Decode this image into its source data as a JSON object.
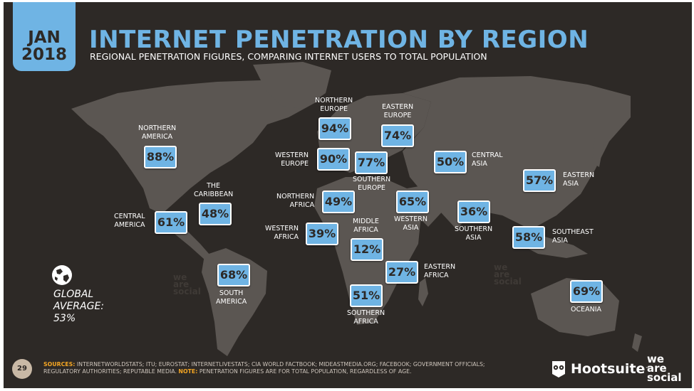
{
  "header": {
    "month": "JAN",
    "year": "2018",
    "title": "INTERNET PENETRATION BY REGION",
    "subtitle": "REGIONAL PENETRATION FIGURES, COMPARING INTERNET USERS TO TOTAL POPULATION"
  },
  "colors": {
    "background": "#2d2926",
    "accent": "#6fb4e4",
    "map": "#5b5652",
    "sources_key": "#f5a623"
  },
  "regions": [
    {
      "id": "northern-america",
      "value": "88%",
      "label": "NORTHERN\nAMERICA"
    },
    {
      "id": "the-caribbean",
      "value": "48%",
      "label": "THE\nCARIBBEAN"
    },
    {
      "id": "central-america",
      "value": "61%",
      "label": "CENTRAL\nAMERICA"
    },
    {
      "id": "south-america",
      "value": "68%",
      "label": "SOUTH\nAMERICA"
    },
    {
      "id": "northern-europe",
      "value": "94%",
      "label": "NORTHERN\nEUROPE"
    },
    {
      "id": "eastern-europe",
      "value": "74%",
      "label": "EASTERN\nEUROPE"
    },
    {
      "id": "western-europe",
      "value": "90%",
      "label": "WESTERN\nEUROPE"
    },
    {
      "id": "southern-europe",
      "value": "77%",
      "label": "SOUTHERN\nEUROPE"
    },
    {
      "id": "central-asia",
      "value": "50%",
      "label": "CENTRAL\nASIA"
    },
    {
      "id": "eastern-asia",
      "value": "57%",
      "label": "EASTERN\nASIA"
    },
    {
      "id": "northern-africa",
      "value": "49%",
      "label": "NORTHERN\nAFRICA"
    },
    {
      "id": "western-asia",
      "value": "65%",
      "label": "WESTERN\nASIA"
    },
    {
      "id": "southern-asia",
      "value": "36%",
      "label": "SOUTHERN\nASIA"
    },
    {
      "id": "western-africa",
      "value": "39%",
      "label": "WESTERN\nAFRICA"
    },
    {
      "id": "middle-africa",
      "value": "12%",
      "label": "MIDDLE\nAFRICA"
    },
    {
      "id": "southeast-asia",
      "value": "58%",
      "label": "SOUTHEAST\nASIA"
    },
    {
      "id": "eastern-africa",
      "value": "27%",
      "label": "EASTERN\nAFRICA"
    },
    {
      "id": "southern-africa",
      "value": "51%",
      "label": "SOUTHERN\nAFRICA"
    },
    {
      "id": "oceania",
      "value": "69%",
      "label": "OCEANIA"
    }
  ],
  "global": {
    "text": "GLOBAL\nAVERAGE:\n53%",
    "icon": "globe-icon"
  },
  "footer": {
    "page_number": "29",
    "sources_key": "SOURCES:",
    "sources_text": " INTERNETWORLDSTATS; ITU; EUROSTAT; INTERNETLIVESTATS; CIA WORLD FACTBOOK; MIDEASTMEDIA.ORG; FACEBOOK; GOVERNMENT OFFICIALS; REGULATORY AUTHORITIES; REPUTABLE MEDIA. ",
    "note_key": "NOTE:",
    "note_text": " PENETRATION FIGURES ARE FOR TOTAL POPULATION, REGARDLESS OF AGE.",
    "brand_hootsuite": "Hootsuite",
    "brand_tm": "™",
    "brand_was": "we\nare\nsocial",
    "watermark": "we\nare\nsocial"
  }
}
